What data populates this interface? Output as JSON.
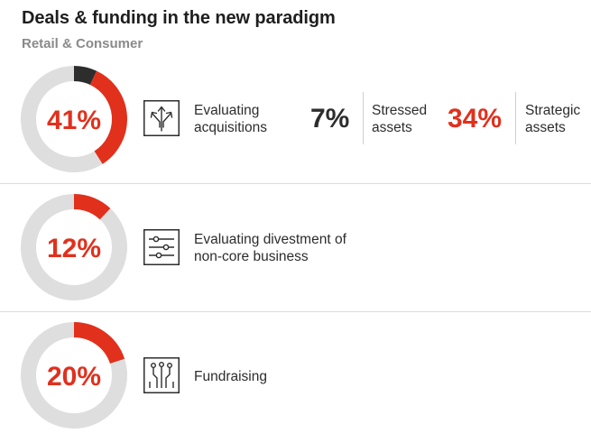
{
  "header": {
    "title": "Deals & funding in the new paradigm",
    "subtitle": "Retail & Consumer"
  },
  "colors": {
    "accent": "#e1301c",
    "dark": "#2d2d2d",
    "track": "#dedede",
    "gray_text": "#8a8a8a"
  },
  "rows": [
    {
      "label_line1": "Evaluating",
      "label_line2": "acquisitions",
      "icon": "diverging-arrows-icon",
      "stats": [
        {
          "value": "7%",
          "label_line1": "Stressed",
          "label_line2": "assets"
        },
        {
          "value": "34%",
          "label_line1": "Strategic",
          "label_line2": "assets"
        }
      ]
    },
    {
      "label_line1": "Evaluating divestment of",
      "label_line2": "non-core business",
      "icon": "sliders-icon"
    },
    {
      "label_line1": "Fundraising",
      "label_line2": "",
      "icon": "circuit-icon"
    }
  ],
  "chart_data": [
    {
      "type": "pie",
      "subtype": "donut",
      "value_label": "41%",
      "slices": [
        {
          "name": "Stressed assets",
          "value": 7,
          "color": "#2d2d2d"
        },
        {
          "name": "Strategic assets",
          "value": 34,
          "color": "#e1301c"
        },
        {
          "value": 59,
          "color": "#dedede"
        }
      ]
    },
    {
      "type": "pie",
      "subtype": "donut",
      "value_label": "12%",
      "slices": [
        {
          "value": 12,
          "color": "#e1301c"
        },
        {
          "value": 88,
          "color": "#dedede"
        }
      ]
    },
    {
      "type": "pie",
      "subtype": "donut",
      "value_label": "20%",
      "slices": [
        {
          "value": 20,
          "color": "#e1301c"
        },
        {
          "value": 80,
          "color": "#dedede"
        }
      ]
    }
  ]
}
